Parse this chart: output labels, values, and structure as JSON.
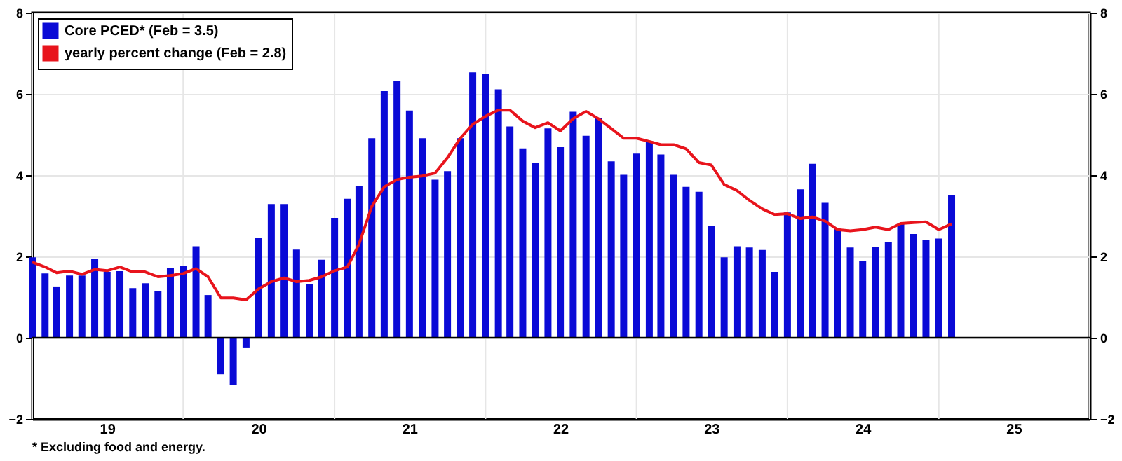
{
  "chart_data": {
    "type": "bar",
    "x": [
      "2019-01",
      "2019-02",
      "2019-03",
      "2019-04",
      "2019-05",
      "2019-06",
      "2019-07",
      "2019-08",
      "2019-09",
      "2019-10",
      "2019-11",
      "2019-12",
      "2020-01",
      "2020-02",
      "2020-03",
      "2020-04",
      "2020-05",
      "2020-06",
      "2020-07",
      "2020-08",
      "2020-09",
      "2020-10",
      "2020-11",
      "2020-12",
      "2021-01",
      "2021-02",
      "2021-03",
      "2021-04",
      "2021-05",
      "2021-06",
      "2021-07",
      "2021-08",
      "2021-09",
      "2021-10",
      "2021-11",
      "2021-12",
      "2022-01",
      "2022-02",
      "2022-03",
      "2022-04",
      "2022-05",
      "2022-06",
      "2022-07",
      "2022-08",
      "2022-09",
      "2022-10",
      "2022-11",
      "2022-12",
      "2023-01",
      "2023-02",
      "2023-03",
      "2023-04",
      "2023-05",
      "2023-06",
      "2023-07",
      "2023-08",
      "2023-09",
      "2023-10",
      "2023-11",
      "2023-12",
      "2024-01",
      "2024-02",
      "2024-03",
      "2024-04",
      "2024-05",
      "2024-06",
      "2024-07",
      "2024-08",
      "2024-09",
      "2024-10",
      "2024-11",
      "2024-12",
      "2025-01",
      "2025-02"
    ],
    "series": [
      {
        "name": "Core PCED* (Feb = 3.5)",
        "type": "bar",
        "color": "#0a0ad6",
        "values": [
          1.98,
          1.58,
          1.26,
          1.53,
          1.53,
          1.94,
          1.62,
          1.64,
          1.22,
          1.34,
          1.14,
          1.71,
          1.77,
          2.25,
          1.05,
          -0.9,
          -1.17,
          -0.24,
          2.46,
          3.29,
          3.29,
          2.17,
          1.32,
          1.92,
          2.95,
          3.42,
          3.74,
          4.91,
          6.07,
          6.31,
          5.59,
          4.91,
          3.89,
          4.1,
          4.91,
          6.53,
          6.5,
          6.11,
          5.2,
          4.66,
          4.31,
          5.15,
          4.69,
          5.56,
          4.97,
          5.41,
          4.34,
          4.01,
          4.53,
          4.83,
          4.51,
          4.01,
          3.71,
          3.59,
          2.75,
          1.98,
          2.25,
          2.22,
          2.16,
          1.62,
          3.08,
          3.65,
          4.28,
          3.32,
          2.68,
          2.22,
          1.89,
          2.24,
          2.36,
          2.8,
          2.55,
          2.4,
          2.44,
          3.5
        ]
      },
      {
        "name": "yearly percent change (Feb = 2.8)",
        "type": "line",
        "color": "#e8141c",
        "values": [
          1.86,
          1.74,
          1.6,
          1.64,
          1.56,
          1.68,
          1.65,
          1.74,
          1.62,
          1.62,
          1.5,
          1.53,
          1.58,
          1.7,
          1.5,
          0.98,
          0.98,
          0.93,
          1.2,
          1.38,
          1.47,
          1.38,
          1.41,
          1.5,
          1.65,
          1.74,
          2.3,
          3.23,
          3.71,
          3.89,
          3.95,
          3.98,
          4.05,
          4.43,
          4.91,
          5.25,
          5.45,
          5.6,
          5.6,
          5.33,
          5.17,
          5.29,
          5.09,
          5.39,
          5.57,
          5.39,
          5.15,
          4.91,
          4.91,
          4.83,
          4.75,
          4.75,
          4.65,
          4.31,
          4.25,
          3.77,
          3.62,
          3.38,
          3.17,
          3.03,
          3.05,
          2.93,
          2.97,
          2.87,
          2.66,
          2.63,
          2.66,
          2.72,
          2.66,
          2.81,
          2.83,
          2.85,
          2.66,
          2.8
        ]
      }
    ],
    "xlim": [
      "2019-01",
      "2026-01"
    ],
    "xticks": [
      {
        "value": "2019-07",
        "label": "19"
      },
      {
        "value": "2020-07",
        "label": "20"
      },
      {
        "value": "2021-07",
        "label": "21"
      },
      {
        "value": "2022-07",
        "label": "22"
      },
      {
        "value": "2023-07",
        "label": "23"
      },
      {
        "value": "2024-07",
        "label": "24"
      },
      {
        "value": "2025-07",
        "label": "25"
      }
    ],
    "ylim": [
      -2,
      8
    ],
    "yticks": [
      -2,
      0,
      2,
      4,
      6,
      8
    ],
    "y2lim": [
      -2,
      8
    ],
    "y2ticks": [
      -2,
      0,
      2,
      4,
      6,
      8
    ],
    "ref_lines": [
      {
        "axis": "y",
        "value": 0,
        "color": "#000000"
      }
    ],
    "grid": true,
    "legend": "top left",
    "annotations": [
      "* Excluding food and energy."
    ]
  }
}
